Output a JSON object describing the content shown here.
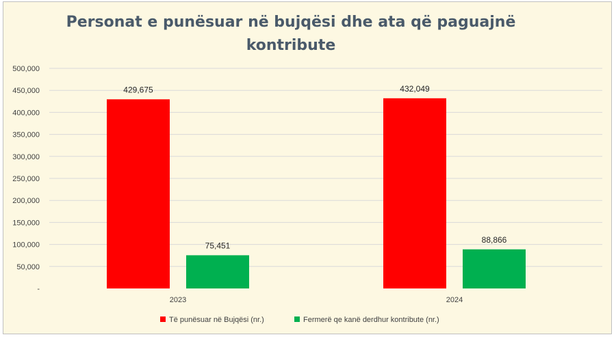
{
  "chart_data": {
    "type": "bar",
    "title_line1": "Personat e punësuar në bujqësi dhe ata që paguajnë",
    "title_line2": "kontribute",
    "categories": [
      "2023",
      "2024"
    ],
    "series": [
      {
        "name": "Të punësuar në Bujqësi (nr.)",
        "color": "#ff0000",
        "values": [
          429675,
          432049
        ],
        "labels": [
          "429,675",
          "432,049"
        ]
      },
      {
        "name": "Fermerë qe kanë derdhur kontribute (nr.)",
        "color": "#00b050",
        "values": [
          75451,
          88866
        ],
        "labels": [
          "75,451",
          "88,866"
        ]
      }
    ],
    "ylim": [
      0,
      500000
    ],
    "ytick_values": [
      0,
      50000,
      100000,
      150000,
      200000,
      250000,
      300000,
      350000,
      400000,
      450000,
      500000
    ],
    "ytick_labels": [
      "-",
      "50,000",
      "100,000",
      "150,000",
      "200,000",
      "250,000",
      "300,000",
      "350,000",
      "400,000",
      "450,000",
      "500,000"
    ],
    "grid": true,
    "legend": "bottom",
    "xlabel": "",
    "ylabel": ""
  }
}
